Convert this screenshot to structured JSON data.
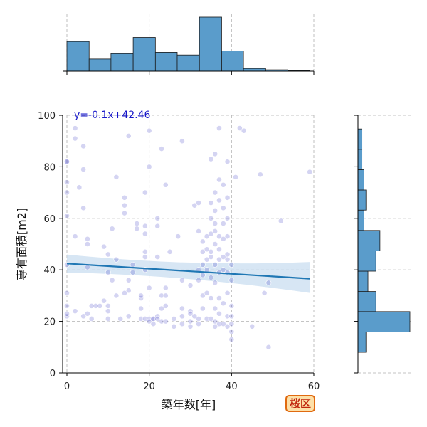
{
  "badge": {
    "label": "桜区"
  },
  "chart_data": {
    "type": "scatter",
    "xlabel": "築年数[年]",
    "ylabel": "専有面積[m2]",
    "xlim": [
      0,
      60
    ],
    "ylim": [
      0,
      100
    ],
    "xticks": [
      0,
      20,
      40,
      60
    ],
    "yticks": [
      0,
      20,
      40,
      60,
      80,
      100
    ],
    "grid": true,
    "regression": {
      "slope": -0.1,
      "intercept": 42.46,
      "label": "y=-0.1x+42.46",
      "x_range": [
        0,
        59
      ]
    },
    "colors": {
      "point": "#3a3ac6",
      "regression": "#1f77b4",
      "ci_band": "#c6dbef",
      "hist_bar": "#5a9ccb",
      "grid": "#b0b0b0"
    },
    "points": [
      [
        0,
        42
      ],
      [
        0,
        31
      ],
      [
        0,
        22
      ],
      [
        0,
        23
      ],
      [
        0,
        26
      ],
      [
        0,
        61
      ],
      [
        0,
        70
      ],
      [
        0,
        74
      ],
      [
        0,
        82
      ],
      [
        0,
        82
      ],
      [
        2,
        95
      ],
      [
        2,
        91
      ],
      [
        2,
        53
      ],
      [
        2,
        24
      ],
      [
        3,
        72
      ],
      [
        4,
        79
      ],
      [
        4,
        64
      ],
      [
        4,
        88
      ],
      [
        4,
        22
      ],
      [
        5,
        23
      ],
      [
        5,
        41
      ],
      [
        5,
        50
      ],
      [
        5,
        52
      ],
      [
        6,
        21
      ],
      [
        6,
        26
      ],
      [
        7,
        26
      ],
      [
        8,
        26
      ],
      [
        9,
        28
      ],
      [
        9,
        49
      ],
      [
        10,
        46
      ],
      [
        10,
        39
      ],
      [
        10,
        24
      ],
      [
        10,
        26
      ],
      [
        10,
        21
      ],
      [
        11,
        36
      ],
      [
        11,
        56
      ],
      [
        12,
        44
      ],
      [
        12,
        76
      ],
      [
        12,
        30
      ],
      [
        13,
        21
      ],
      [
        14,
        65
      ],
      [
        14,
        68
      ],
      [
        14,
        62
      ],
      [
        14,
        31
      ],
      [
        15,
        92
      ],
      [
        15,
        32
      ],
      [
        15,
        36
      ],
      [
        15,
        22
      ],
      [
        16,
        39
      ],
      [
        16,
        42
      ],
      [
        17,
        58
      ],
      [
        17,
        56
      ],
      [
        18,
        29
      ],
      [
        18,
        30
      ],
      [
        18,
        25
      ],
      [
        18,
        21
      ],
      [
        19,
        21
      ],
      [
        19,
        70
      ],
      [
        19,
        40
      ],
      [
        19,
        45
      ],
      [
        19,
        47
      ],
      [
        19,
        54
      ],
      [
        19,
        57
      ],
      [
        20,
        80
      ],
      [
        20,
        94
      ],
      [
        20,
        33
      ],
      [
        20,
        21
      ],
      [
        20,
        20
      ],
      [
        21,
        21
      ],
      [
        21,
        19
      ],
      [
        21,
        21
      ],
      [
        22,
        60
      ],
      [
        22,
        57
      ],
      [
        22,
        45
      ],
      [
        22,
        22
      ],
      [
        22,
        21
      ],
      [
        23,
        87
      ],
      [
        23,
        30
      ],
      [
        23,
        25
      ],
      [
        23,
        20
      ],
      [
        24,
        73
      ],
      [
        24,
        30
      ],
      [
        24,
        26
      ],
      [
        24,
        20
      ],
      [
        24,
        33
      ],
      [
        25,
        47
      ],
      [
        26,
        21
      ],
      [
        26,
        18
      ],
      [
        27,
        53
      ],
      [
        28,
        90
      ],
      [
        28,
        36
      ],
      [
        28,
        25
      ],
      [
        28,
        19
      ],
      [
        28,
        22
      ],
      [
        30,
        34
      ],
      [
        30,
        24
      ],
      [
        30,
        23
      ],
      [
        30,
        20
      ],
      [
        30,
        18
      ],
      [
        31,
        22
      ],
      [
        31,
        65
      ],
      [
        32,
        66
      ],
      [
        32,
        55
      ],
      [
        32,
        40
      ],
      [
        32,
        36
      ],
      [
        32,
        19
      ],
      [
        32,
        21
      ],
      [
        33,
        51
      ],
      [
        33,
        47
      ],
      [
        33,
        42
      ],
      [
        33,
        38
      ],
      [
        33,
        30
      ],
      [
        33,
        25
      ],
      [
        34,
        53
      ],
      [
        34,
        48
      ],
      [
        34,
        44
      ],
      [
        34,
        40
      ],
      [
        34,
        31
      ],
      [
        34,
        21
      ],
      [
        35,
        83
      ],
      [
        35,
        66
      ],
      [
        35,
        60
      ],
      [
        35,
        54
      ],
      [
        35,
        47
      ],
      [
        35,
        45
      ],
      [
        35,
        37
      ],
      [
        35,
        29
      ],
      [
        35,
        21
      ],
      [
        36,
        85
      ],
      [
        36,
        70
      ],
      [
        36,
        63
      ],
      [
        36,
        58
      ],
      [
        36,
        55
      ],
      [
        36,
        50
      ],
      [
        36,
        42
      ],
      [
        36,
        35
      ],
      [
        36,
        25
      ],
      [
        36,
        20
      ],
      [
        36,
        18
      ],
      [
        37,
        95
      ],
      [
        37,
        75
      ],
      [
        37,
        67
      ],
      [
        37,
        53
      ],
      [
        37,
        48
      ],
      [
        37,
        44
      ],
      [
        37,
        39
      ],
      [
        37,
        29
      ],
      [
        37,
        23
      ],
      [
        37,
        19
      ],
      [
        38,
        73
      ],
      [
        38,
        64
      ],
      [
        38,
        58
      ],
      [
        38,
        52
      ],
      [
        38,
        45
      ],
      [
        38,
        40
      ],
      [
        38,
        27
      ],
      [
        38,
        19
      ],
      [
        39,
        82
      ],
      [
        39,
        68
      ],
      [
        39,
        60
      ],
      [
        39,
        53
      ],
      [
        39,
        46
      ],
      [
        39,
        44
      ],
      [
        39,
        39
      ],
      [
        39,
        31
      ],
      [
        39,
        22
      ],
      [
        39,
        18
      ],
      [
        40,
        42
      ],
      [
        40,
        36
      ],
      [
        40,
        26
      ],
      [
        40,
        22
      ],
      [
        40,
        19
      ],
      [
        40,
        16
      ],
      [
        40,
        13
      ],
      [
        41,
        76
      ],
      [
        42,
        95
      ],
      [
        43,
        94
      ],
      [
        45,
        18
      ],
      [
        47,
        77
      ],
      [
        48,
        31
      ],
      [
        49,
        35
      ],
      [
        49,
        10
      ],
      [
        52,
        59
      ],
      [
        59,
        78
      ]
    ],
    "top_histogram": {
      "bins": [
        0,
        5.4,
        10.7,
        16.1,
        21.5,
        26.8,
        32.2,
        37.6,
        42.9,
        48.3,
        53.7,
        59
      ],
      "counts": [
        22,
        9,
        13,
        25,
        14,
        12,
        40,
        15,
        2,
        1,
        0.5
      ]
    },
    "right_histogram": {
      "bins": [
        8,
        15.9,
        23.8,
        31.6,
        39.5,
        47.4,
        55.3,
        63.2,
        71,
        78.9,
        86.8,
        94.7
      ],
      "counts": [
        4,
        26,
        9,
        5,
        9,
        11,
        3,
        4,
        3,
        2,
        2
      ]
    }
  }
}
